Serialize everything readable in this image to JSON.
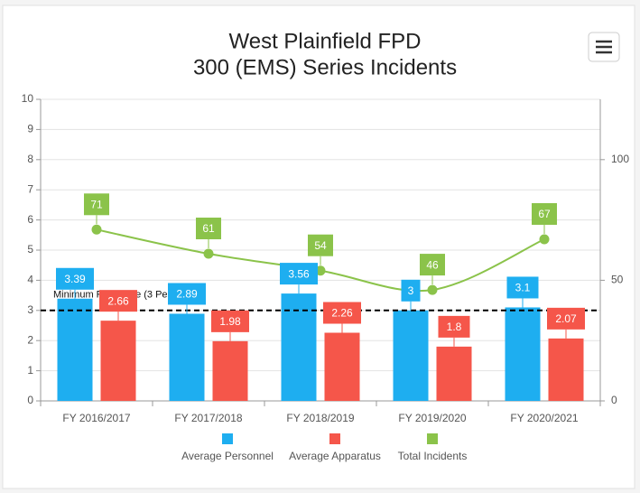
{
  "chart_data": {
    "type": "bar-line",
    "title": "West Plainfield FPD",
    "subtitle": "300 (EMS) Series Incidents",
    "categories": [
      "FY 2016/2017",
      "FY 2017/2018",
      "FY 2018/2019",
      "FY 2019/2020",
      "FY 2020/2021"
    ],
    "series": [
      {
        "name": "Average Personnel",
        "color": "#1eaef0",
        "type": "bar",
        "values": [
          3.39,
          2.89,
          3.56,
          3,
          3.1
        ]
      },
      {
        "name": "Average Apparatus",
        "color": "#f5564a",
        "type": "bar",
        "values": [
          2.66,
          1.98,
          2.26,
          1.8,
          2.07
        ]
      },
      {
        "name": "Total Incidents",
        "color": "#8bc34a",
        "type": "line",
        "axis": "y2",
        "values": [
          71,
          61,
          54,
          46,
          67
        ]
      }
    ],
    "ylim": [
      0,
      10
    ],
    "yticks": [
      0,
      1,
      2,
      3,
      4,
      5,
      6,
      7,
      8,
      9,
      10
    ],
    "y2lim": [
      0,
      125
    ],
    "y2ticks": [
      0,
      50,
      100
    ],
    "annotation": {
      "value": 3,
      "label": "Minimum Response (3 Personnel)"
    },
    "grid": true,
    "legend": "bottom"
  }
}
